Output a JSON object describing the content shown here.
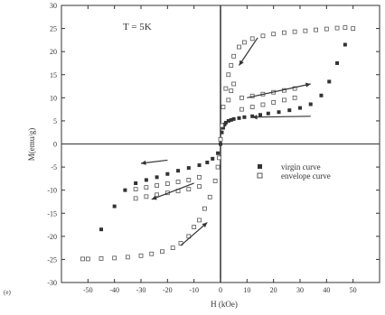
{
  "chart_data": {
    "type": "scatter",
    "annotation": "T = 5K",
    "xlabel": "H (kOe)",
    "ylabel": "M(emu/g)",
    "panel_label": "(e)",
    "xlim": [
      -60,
      60
    ],
    "ylim": [
      -30,
      30
    ],
    "x_ticks": [
      -50,
      -40,
      -30,
      -20,
      -10,
      0,
      10,
      20,
      30,
      40,
      50
    ],
    "y_ticks": [
      -30,
      -25,
      -20,
      -15,
      -10,
      -5,
      0,
      5,
      10,
      15,
      20,
      25,
      30
    ],
    "legend_position": "right-middle",
    "series": [
      {
        "name": "virgin curve",
        "marker": "filled-square",
        "color": "#333333",
        "points": [
          [
            0,
            0
          ],
          [
            0.5,
            2.5
          ],
          [
            1,
            3.5
          ],
          [
            1.5,
            4.2
          ],
          [
            2,
            4.6
          ],
          [
            3,
            5.0
          ],
          [
            4,
            5.2
          ],
          [
            5,
            5.4
          ],
          [
            7,
            5.6
          ],
          [
            9,
            5.8
          ],
          [
            12,
            6.0
          ],
          [
            15,
            6.3
          ],
          [
            18,
            6.6
          ],
          [
            22,
            6.9
          ],
          [
            26,
            7.3
          ],
          [
            30,
            7.8
          ],
          [
            34,
            8.6
          ],
          [
            38,
            10.5
          ],
          [
            41,
            13.5
          ],
          [
            44,
            17.5
          ],
          [
            47,
            21.5
          ],
          [
            50,
            25.0
          ]
        ]
      },
      {
        "name": "envelope curve",
        "marker": "open-square",
        "color": "#555555",
        "points": [
          [
            50,
            25.0
          ],
          [
            47,
            25.2
          ],
          [
            44,
            25.1
          ],
          [
            40,
            24.9
          ],
          [
            36,
            24.7
          ],
          [
            32,
            24.5
          ],
          [
            28,
            24.3
          ],
          [
            24,
            24.1
          ],
          [
            20,
            23.8
          ],
          [
            16,
            23.4
          ],
          [
            12,
            22.8
          ],
          [
            9,
            22.0
          ],
          [
            7,
            21.0
          ],
          [
            5,
            19.0
          ],
          [
            4,
            17.0
          ],
          [
            3,
            15.0
          ],
          [
            2,
            12.0
          ],
          [
            1,
            8.0
          ],
          [
            0.5,
            4.0
          ],
          [
            0,
            1.0
          ],
          [
            -0.5,
            -3.0
          ],
          [
            -1,
            -5.0
          ],
          [
            -2,
            -8.0
          ],
          [
            -4,
            -11.5
          ],
          [
            -6,
            -14.0
          ],
          [
            -8,
            -16.5
          ],
          [
            -10,
            -18.0
          ],
          [
            -12,
            -20.0
          ],
          [
            -15,
            -21.5
          ],
          [
            -18,
            -22.5
          ],
          [
            -22,
            -23.3
          ],
          [
            -26,
            -23.8
          ],
          [
            -30,
            -24.2
          ],
          [
            -35,
            -24.5
          ],
          [
            -40,
            -24.7
          ],
          [
            -45,
            -24.8
          ],
          [
            -50,
            -24.9
          ],
          [
            -52,
            -24.9
          ]
        ]
      },
      {
        "name": "",
        "marker": "filled-square",
        "color": "#333333",
        "points": [
          [
            -45,
            -18.5
          ],
          [
            -40,
            -13.5
          ],
          [
            -36,
            -10.0
          ],
          [
            -32,
            -8.5
          ],
          [
            -28,
            -7.8
          ],
          [
            -24,
            -7.2
          ],
          [
            -20,
            -6.5
          ],
          [
            -16,
            -5.8
          ],
          [
            -12,
            -5.2
          ],
          [
            -8,
            -4.6
          ],
          [
            -5,
            -4.0
          ],
          [
            -3,
            -3.2
          ],
          [
            -1,
            -2.0
          ]
        ]
      },
      {
        "name": "",
        "marker": "open-square",
        "color": "#555555",
        "points": [
          [
            -32,
            -9.8
          ],
          [
            -28,
            -9.4
          ],
          [
            -24,
            -9.0
          ],
          [
            -20,
            -8.6
          ],
          [
            -16,
            -8.2
          ],
          [
            -12,
            -7.8
          ],
          [
            -8,
            -7.2
          ],
          [
            -32,
            -11.8
          ],
          [
            -28,
            -11.4
          ],
          [
            -24,
            -11.0
          ],
          [
            -20,
            -10.6
          ],
          [
            -16,
            -10.2
          ],
          [
            -12,
            -9.8
          ],
          [
            -8,
            -9.2
          ],
          [
            8,
            7.5
          ],
          [
            12,
            8.0
          ],
          [
            16,
            8.5
          ],
          [
            20,
            9.0
          ],
          [
            24,
            9.5
          ],
          [
            28,
            10.0
          ],
          [
            8,
            10.0
          ],
          [
            12,
            10.4
          ],
          [
            16,
            10.8
          ],
          [
            20,
            11.2
          ],
          [
            24,
            11.6
          ],
          [
            28,
            12.0
          ],
          [
            3,
            9.5
          ],
          [
            4,
            11.5
          ],
          [
            5,
            13.0
          ]
        ]
      }
    ],
    "arrows": [
      {
        "from": [
          -20,
          -3.5
        ],
        "to": [
          -30,
          -4.2
        ]
      },
      {
        "from": [
          -10,
          -8.5
        ],
        "to": [
          -26,
          -12.0
        ]
      },
      {
        "from": [
          10,
          10.0
        ],
        "to": [
          34,
          13.0
        ]
      },
      {
        "from": [
          34,
          6.0
        ],
        "to": [
          12,
          5.8
        ]
      },
      {
        "from": [
          14,
          23.0
        ],
        "to": [
          7,
          17.0
        ]
      },
      {
        "from": [
          -15,
          -22.0
        ],
        "to": [
          -5,
          -17.0
        ]
      }
    ]
  }
}
